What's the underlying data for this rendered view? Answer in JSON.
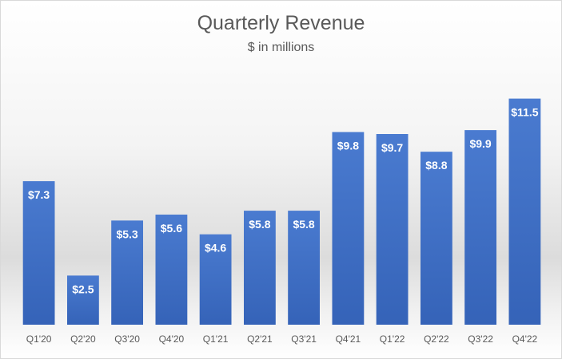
{
  "chart_data": {
    "type": "bar",
    "title": "Quarterly Revenue",
    "subtitle": "$ in millions",
    "categories": [
      "Q1'20",
      "Q2'20",
      "Q3'20",
      "Q4'20",
      "Q1'21",
      "Q2'21",
      "Q3'21",
      "Q4'21",
      "Q1'22",
      "Q2'22",
      "Q3'22",
      "Q4'22"
    ],
    "values": [
      7.3,
      2.5,
      5.3,
      5.6,
      4.6,
      5.8,
      5.8,
      9.8,
      9.7,
      8.8,
      9.9,
      11.5
    ],
    "value_labels": [
      "$7.3",
      "$2.5",
      "$5.3",
      "$5.6",
      "$4.6",
      "$5.8",
      "$5.8",
      "$9.8",
      "$9.7",
      "$8.8",
      "$9.9",
      "$11.5"
    ],
    "xlabel": "",
    "ylabel": "",
    "ylim": [
      0,
      12.5
    ],
    "grid": false,
    "legend": "none",
    "bar_color": "#4472c4"
  }
}
